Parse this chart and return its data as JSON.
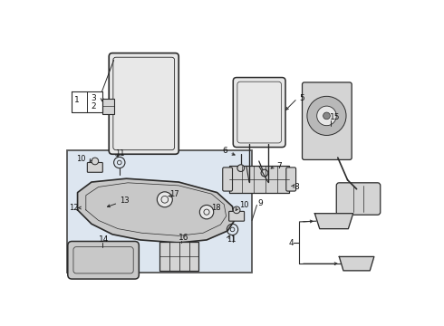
{
  "bg_color": "#ffffff",
  "line_color": "#2a2a2a",
  "inset_fill": "#dde6f0",
  "part_fill": "#e8e8e8",
  "part_fill2": "#d4d4d4",
  "figsize": [
    4.9,
    3.6
  ],
  "dpi": 100
}
